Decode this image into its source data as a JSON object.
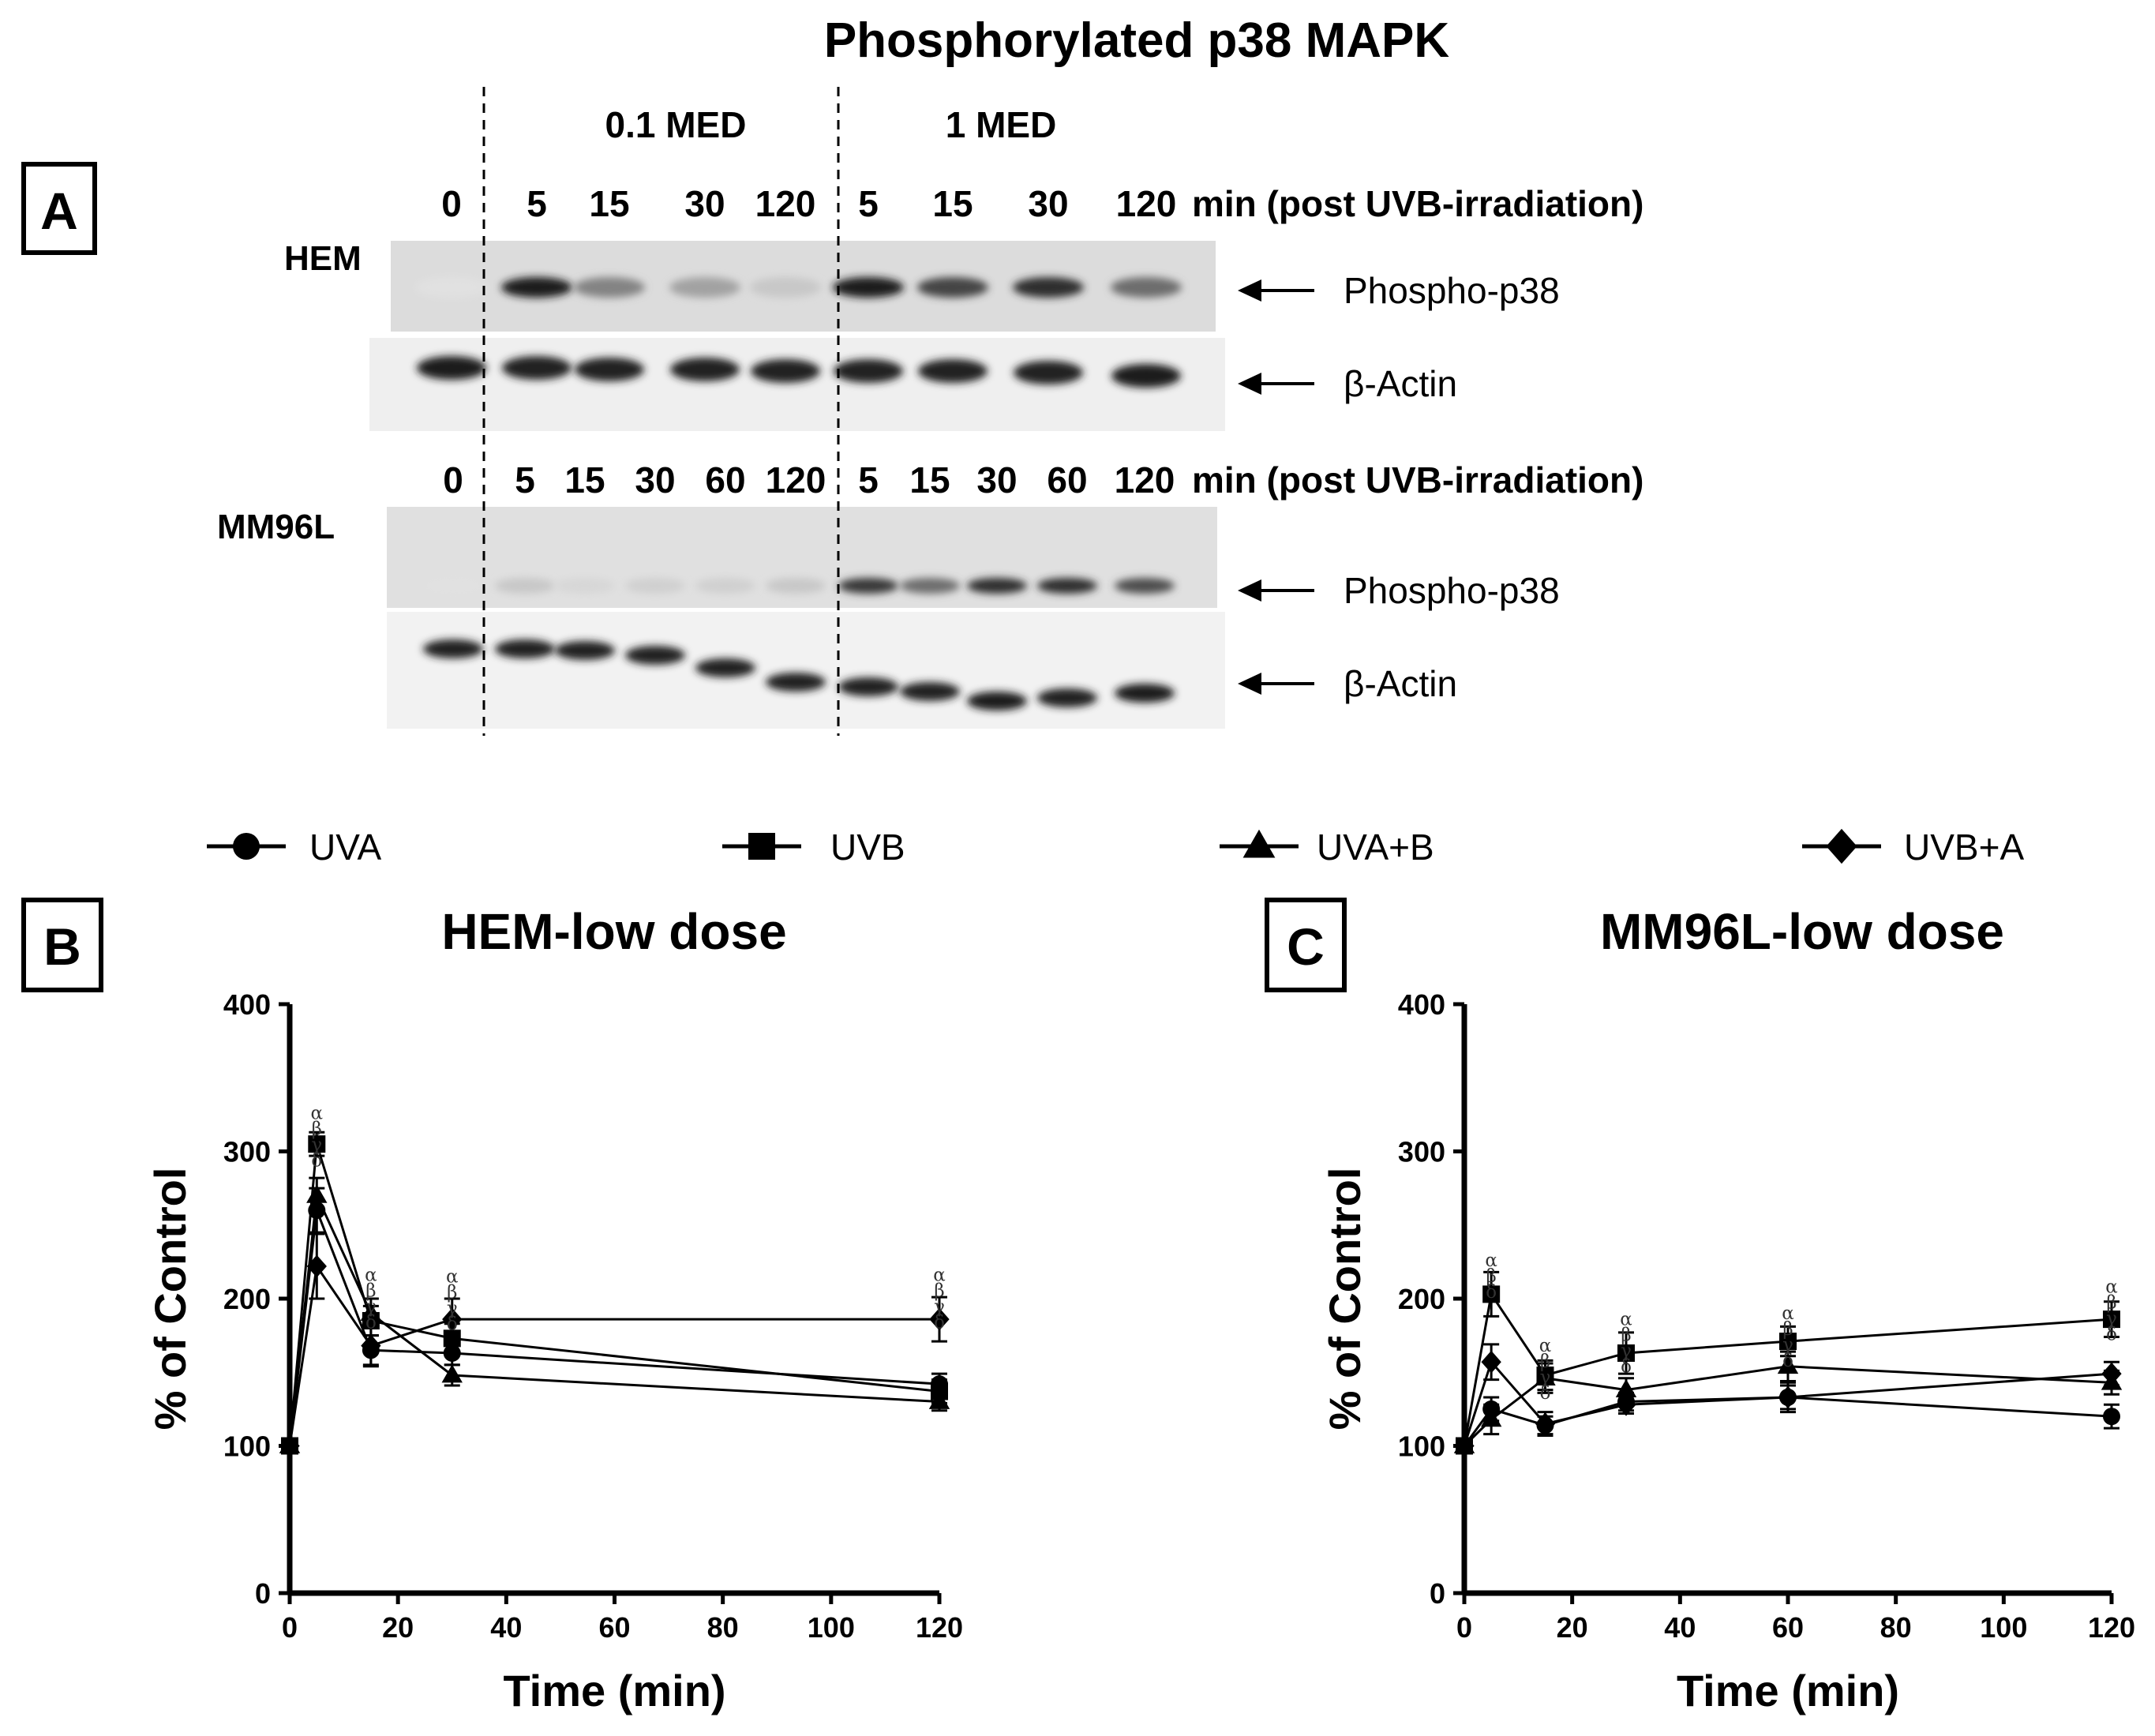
{
  "figure": {
    "main_title": "Phosphorylated p38 MAPK",
    "panel_a": {
      "label": "A",
      "dose_labels": [
        "0.1 MED",
        "1 MED"
      ],
      "hem": {
        "cell_line": "HEM",
        "time_labels": [
          "0",
          "5",
          "15",
          "30",
          "120",
          "5",
          "15",
          "30",
          "120"
        ],
        "time_suffix": "min (post UVB-irradiation)",
        "band_labels": [
          "Phospho-p38",
          "β-Actin"
        ],
        "phospho_intensity": [
          0.0,
          0.95,
          0.45,
          0.3,
          0.12,
          0.95,
          0.75,
          0.85,
          0.55
        ],
        "actin_intensity": [
          0.95,
          0.9,
          0.9,
          0.9,
          0.9,
          0.9,
          0.9,
          0.9,
          0.95
        ]
      },
      "mm96l": {
        "cell_line": "MM96L",
        "time_labels": [
          "0",
          "5",
          "15",
          "30",
          "60",
          "120",
          "5",
          "15",
          "30",
          "60",
          "120"
        ],
        "time_suffix": "min (post UVB-irradiation)",
        "band_labels": [
          "Phospho-p38",
          "β-Actin"
        ],
        "phospho_intensity": [
          0.0,
          0.12,
          0.05,
          0.08,
          0.08,
          0.12,
          0.8,
          0.55,
          0.85,
          0.85,
          0.7
        ],
        "actin_intensity": [
          0.9,
          0.9,
          0.9,
          0.9,
          0.9,
          0.9,
          0.9,
          0.9,
          0.95,
          0.9,
          0.95
        ]
      }
    },
    "legend": [
      {
        "name": "UVA",
        "marker": "circle"
      },
      {
        "name": "UVB",
        "marker": "square"
      },
      {
        "name": "UVA+B",
        "marker": "triangle"
      },
      {
        "name": "UVB+A",
        "marker": "diamond"
      }
    ]
  },
  "chart_data": [
    {
      "type": "line",
      "panel": "B",
      "title": "HEM-low dose",
      "xlabel": "Time (min)",
      "ylabel": "% of Control",
      "xlim": [
        0,
        120
      ],
      "ylim": [
        0,
        400
      ],
      "xticks": [
        0,
        20,
        40,
        60,
        80,
        100,
        120
      ],
      "yticks": [
        0,
        100,
        200,
        300,
        400
      ],
      "x": [
        0,
        5,
        15,
        30,
        120
      ],
      "series": [
        {
          "name": "UVA",
          "marker": "circle",
          "values": [
            100,
            260,
            165,
            163,
            142
          ],
          "errors": [
            0,
            15,
            10,
            8,
            7
          ]
        },
        {
          "name": "UVB",
          "marker": "square",
          "values": [
            100,
            305,
            185,
            173,
            137
          ],
          "errors": [
            0,
            8,
            10,
            10,
            8
          ]
        },
        {
          "name": "UVA+B",
          "marker": "triangle",
          "values": [
            100,
            270,
            190,
            148,
            130
          ],
          "errors": [
            0,
            12,
            10,
            7,
            6
          ]
        },
        {
          "name": "UVB+A",
          "marker": "diamond",
          "values": [
            100,
            222,
            168,
            186,
            186
          ],
          "errors": [
            0,
            22,
            14,
            14,
            15
          ]
        }
      ],
      "annotations": [
        {
          "x": 5,
          "y": 322,
          "symbols": [
            "α",
            "β",
            "γ",
            "δ"
          ]
        },
        {
          "x": 15,
          "y": 212,
          "symbols": [
            "α",
            "β",
            "γ",
            "δ"
          ]
        },
        {
          "x": 30,
          "y": 211,
          "symbols": [
            "α",
            "β",
            "γ",
            "δ"
          ]
        },
        {
          "x": 120,
          "y": 212,
          "symbols": [
            "α",
            "β",
            "γ",
            "δ"
          ]
        }
      ]
    },
    {
      "type": "line",
      "panel": "C",
      "title": "MM96L-low dose",
      "xlabel": "Time (min)",
      "ylabel": "% of Control",
      "xlim": [
        0,
        120
      ],
      "ylim": [
        0,
        400
      ],
      "xticks": [
        0,
        20,
        40,
        60,
        80,
        100,
        120
      ],
      "yticks": [
        0,
        100,
        200,
        300,
        400
      ],
      "x": [
        0,
        5,
        15,
        30,
        60,
        120
      ],
      "series": [
        {
          "name": "UVA",
          "marker": "circle",
          "values": [
            100,
            125,
            114,
            130,
            133,
            120
          ],
          "errors": [
            0,
            8,
            6,
            6,
            10,
            8
          ]
        },
        {
          "name": "UVB",
          "marker": "square",
          "values": [
            100,
            203,
            148,
            163,
            171,
            186
          ],
          "errors": [
            0,
            15,
            10,
            14,
            10,
            12
          ]
        },
        {
          "name": "UVA+B",
          "marker": "triangle",
          "values": [
            100,
            118,
            146,
            138,
            154,
            143
          ],
          "errors": [
            0,
            10,
            10,
            8,
            10,
            8
          ]
        },
        {
          "name": "UVB+A",
          "marker": "diamond",
          "values": [
            100,
            157,
            115,
            128,
            133,
            149
          ],
          "errors": [
            0,
            12,
            8,
            6,
            8,
            8
          ]
        }
      ],
      "annotations": [
        {
          "x": 5,
          "y": 222,
          "symbols": [
            "α",
            "β",
            "δ"
          ]
        },
        {
          "x": 15,
          "y": 164,
          "symbols": [
            "α",
            "β",
            "γ",
            "δ"
          ]
        },
        {
          "x": 30,
          "y": 182,
          "symbols": [
            "α",
            "β",
            "γ",
            "δ"
          ]
        },
        {
          "x": 60,
          "y": 186,
          "symbols": [
            "α",
            "β",
            "γ",
            "δ"
          ]
        },
        {
          "x": 120,
          "y": 204,
          "symbols": [
            "α",
            "β",
            "γ",
            "δ"
          ]
        }
      ]
    }
  ]
}
